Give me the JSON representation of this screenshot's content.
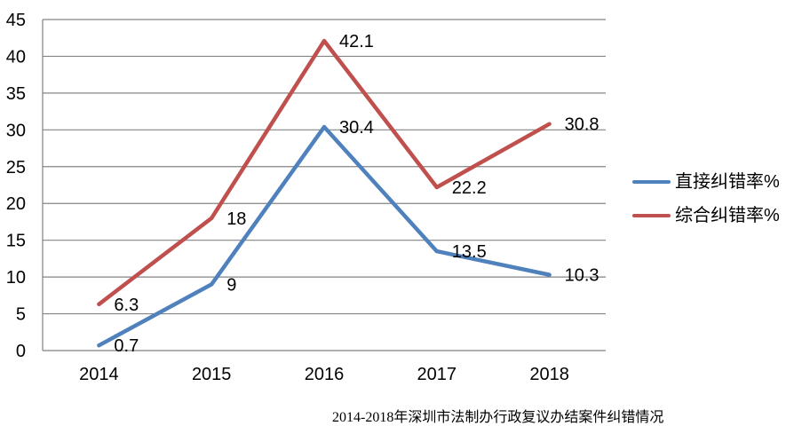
{
  "chart_data": {
    "type": "line",
    "title": "2014-2018年深圳市法制办行政复议办结案件纠错情况",
    "categories": [
      "2014",
      "2015",
      "2016",
      "2017",
      "2018"
    ],
    "series": [
      {
        "name": "直接纠错率%",
        "color": "#4F81BD",
        "values": [
          0.7,
          9,
          30.4,
          13.5,
          10.3
        ],
        "labels": [
          "0.7",
          "9",
          "30.4",
          "13.5",
          "10.3"
        ]
      },
      {
        "name": "综合纠错率%",
        "color": "#C0504D",
        "values": [
          6.3,
          18,
          42.1,
          22.2,
          30.8
        ],
        "labels": [
          "6.3",
          "18",
          "42.1",
          "22.2",
          "30.8"
        ]
      }
    ],
    "y_axis": {
      "min": 0,
      "max": 45,
      "step": 5,
      "ticks": [
        "0",
        "5",
        "10",
        "15",
        "20",
        "25",
        "30",
        "35",
        "40",
        "45"
      ]
    },
    "x_axis_label": "",
    "y_axis_label": "",
    "grid": true,
    "legend_position": "right",
    "colors": {
      "grid": "#848484",
      "axis": "#808080",
      "text": "#000000",
      "background": "#FFFFFF"
    }
  }
}
